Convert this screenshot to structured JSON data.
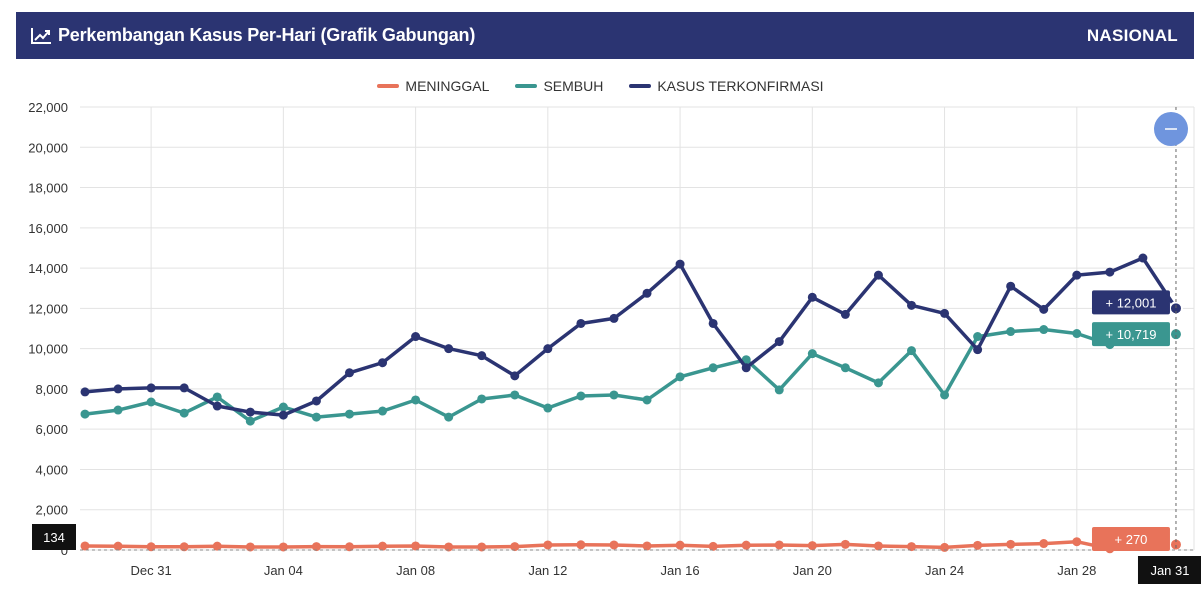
{
  "header": {
    "title": "Perkembangan Kasus Per-Hari (Grafik Gabungan)",
    "region": "NASIONAL",
    "icon": "chart-line-icon"
  },
  "colors": {
    "header_bg": "#2b3472",
    "meninggal": "#e8735a",
    "sembuh": "#3a9690",
    "kasus": "#2b3472",
    "zoom_button": "#6f95de"
  },
  "chart_data": {
    "type": "line",
    "ylim": [
      0,
      22000
    ],
    "y_ticks": [
      "0",
      "2,000",
      "4,000",
      "6,000",
      "8,000",
      "10,000",
      "12,000",
      "14,000",
      "16,000",
      "18,000",
      "20,000",
      "22,000"
    ],
    "x_tick_labels": [
      "Dec 31",
      "Jan 04",
      "Jan 08",
      "Jan 12",
      "Jan 16",
      "Jan 20",
      "Jan 24",
      "Jan 28"
    ],
    "x_dates": [
      "Dec 29",
      "Dec 30",
      "Dec 31",
      "Jan 01",
      "Jan 02",
      "Jan 03",
      "Jan 04",
      "Jan 05",
      "Jan 06",
      "Jan 07",
      "Jan 08",
      "Jan 09",
      "Jan 10",
      "Jan 11",
      "Jan 12",
      "Jan 13",
      "Jan 14",
      "Jan 15",
      "Jan 16",
      "Jan 17",
      "Jan 18",
      "Jan 19",
      "Jan 20",
      "Jan 21",
      "Jan 22",
      "Jan 23",
      "Jan 24",
      "Jan 25",
      "Jan 26",
      "Jan 27",
      "Jan 28",
      "Jan 29",
      "Jan 30",
      "Jan 31"
    ],
    "series": [
      {
        "name": "MENINGGAL",
        "color_key": "meninggal",
        "values": [
          200,
          190,
          160,
          160,
          190,
          150,
          150,
          170,
          160,
          190,
          200,
          150,
          150,
          170,
          250,
          260,
          250,
          200,
          240,
          180,
          240,
          250,
          220,
          280,
          200,
          170,
          130,
          230,
          280,
          320,
          410,
          60,
          180,
          270
        ]
      },
      {
        "name": "SEMBUH",
        "color_key": "sembuh",
        "values": [
          6750,
          6950,
          7350,
          6800,
          7600,
          6400,
          7100,
          6600,
          6750,
          6900,
          7450,
          6600,
          7500,
          7700,
          7050,
          7650,
          7700,
          7450,
          8600,
          9050,
          9450,
          7950,
          9750,
          9050,
          8300,
          9900,
          7700,
          10600,
          10850,
          10950,
          10750,
          10200,
          10719,
          10719
        ]
      },
      {
        "name": "KASUS TERKONFIRMASI",
        "color_key": "kasus",
        "values": [
          7850,
          8000,
          8050,
          8050,
          7150,
          6850,
          6700,
          7400,
          8800,
          9300,
          10600,
          10000,
          9650,
          8650,
          10000,
          11250,
          11500,
          12750,
          14200,
          11250,
          9050,
          10350,
          12550,
          11700,
          13650,
          12150,
          11750,
          9950,
          13100,
          11950,
          13650,
          13800,
          14500,
          12001
        ]
      }
    ],
    "tooltip": {
      "date": "Jan 31",
      "kasus": "+ 12,001",
      "sembuh": "+ 10,719",
      "meninggal": "+ 270",
      "y_cursor_value": "134"
    },
    "grid": true,
    "legend_position": "top-center"
  }
}
